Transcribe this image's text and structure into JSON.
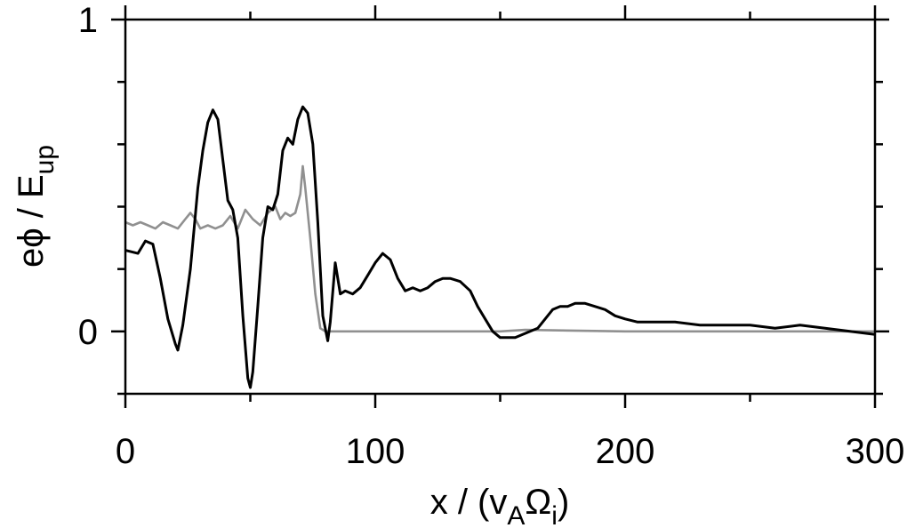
{
  "chart_data": {
    "type": "line",
    "title": "",
    "xlabel": "x / (v",
    "xlabel_sub1": "A",
    "xlabel_mid": "Ω",
    "xlabel_sub2": "i",
    "xlabel_end": ")",
    "ylabel": "eϕ / E",
    "ylabel_sub": "up",
    "xlim": [
      0,
      300
    ],
    "ylim": [
      -0.2,
      1.0
    ],
    "x_ticks": [
      0,
      100,
      200,
      300
    ],
    "x_tick_labels": [
      "0",
      "100",
      "200",
      "300"
    ],
    "y_ticks": [
      0,
      1
    ],
    "y_tick_labels": [
      "0",
      "1"
    ],
    "x_minor_ticks": [
      50,
      150,
      250
    ],
    "y_minor_ticks": [
      -0.2,
      0.2,
      0.4,
      0.6,
      0.8
    ],
    "grid": false,
    "series": [
      {
        "color": "#000000",
        "x": [
          0,
          5,
          8,
          11,
          14,
          17,
          20,
          21,
          23,
          26,
          29,
          31,
          33,
          35,
          37,
          39,
          41,
          43,
          45,
          47,
          49,
          50,
          51,
          53,
          55,
          57,
          59,
          61,
          63,
          65,
          67,
          69,
          71,
          73,
          75,
          77,
          79,
          81,
          82,
          84,
          86,
          88,
          91,
          94,
          97,
          100,
          103,
          106,
          109,
          112,
          115,
          118,
          121,
          124,
          127,
          130,
          134,
          138,
          141,
          144,
          147,
          150,
          153,
          156,
          159,
          162,
          165,
          168,
          171,
          174,
          177,
          180,
          184,
          188,
          192,
          196,
          200,
          205,
          210,
          220,
          230,
          240,
          250,
          260,
          270,
          280,
          290,
          300
        ],
        "y": [
          0.26,
          0.25,
          0.29,
          0.28,
          0.17,
          0.04,
          -0.04,
          -0.06,
          0.02,
          0.2,
          0.46,
          0.58,
          0.67,
          0.71,
          0.68,
          0.55,
          0.42,
          0.39,
          0.3,
          0.05,
          -0.15,
          -0.18,
          -0.13,
          0.08,
          0.3,
          0.4,
          0.39,
          0.44,
          0.58,
          0.62,
          0.6,
          0.68,
          0.72,
          0.7,
          0.6,
          0.35,
          0.05,
          -0.03,
          0.03,
          0.22,
          0.12,
          0.13,
          0.12,
          0.14,
          0.18,
          0.22,
          0.25,
          0.23,
          0.17,
          0.13,
          0.14,
          0.13,
          0.14,
          0.16,
          0.17,
          0.17,
          0.16,
          0.13,
          0.08,
          0.04,
          0.0,
          -0.02,
          -0.02,
          -0.02,
          -0.01,
          0.0,
          0.01,
          0.04,
          0.07,
          0.08,
          0.08,
          0.09,
          0.09,
          0.08,
          0.07,
          0.05,
          0.04,
          0.03,
          0.03,
          0.03,
          0.02,
          0.02,
          0.02,
          0.01,
          0.02,
          0.01,
          0.0,
          -0.01
        ]
      },
      {
        "color": "#909090",
        "x": [
          0,
          3,
          6,
          9,
          12,
          15,
          18,
          21,
          24,
          26,
          28,
          30,
          33,
          36,
          39,
          42,
          45,
          48,
          51,
          54,
          57,
          60,
          62,
          64,
          66,
          68,
          70,
          71,
          72,
          74,
          76,
          78,
          80,
          82,
          90,
          100,
          120,
          150,
          160,
          200,
          240,
          280,
          300
        ],
        "y": [
          0.35,
          0.34,
          0.35,
          0.34,
          0.33,
          0.35,
          0.34,
          0.33,
          0.36,
          0.38,
          0.36,
          0.33,
          0.34,
          0.33,
          0.34,
          0.37,
          0.33,
          0.39,
          0.36,
          0.34,
          0.38,
          0.4,
          0.36,
          0.38,
          0.37,
          0.38,
          0.44,
          0.53,
          0.46,
          0.3,
          0.12,
          0.01,
          0.0,
          0.0,
          0.0,
          0.0,
          0.0,
          0.0,
          0.005,
          0.0,
          0.0,
          0.0,
          0.0
        ]
      }
    ]
  }
}
